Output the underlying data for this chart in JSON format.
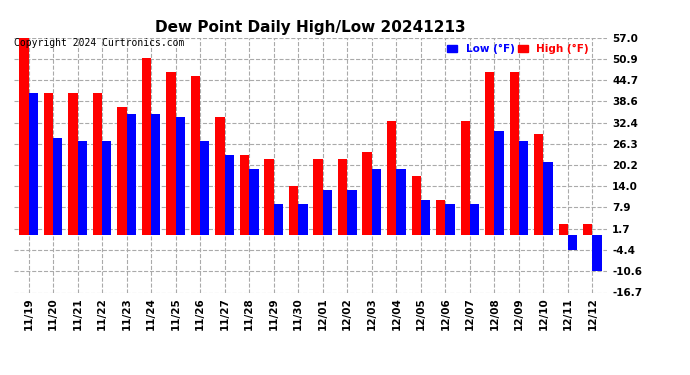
{
  "title": "Dew Point Daily High/Low 20241213",
  "copyright": "Copyright 2024 Curtronics.com",
  "legend_low": "Low (°F)",
  "legend_high": "High (°F)",
  "dates": [
    "11/19",
    "11/20",
    "11/21",
    "11/22",
    "11/23",
    "11/24",
    "11/25",
    "11/26",
    "11/27",
    "11/28",
    "11/29",
    "11/30",
    "12/01",
    "12/02",
    "12/03",
    "12/04",
    "12/05",
    "12/06",
    "12/07",
    "12/08",
    "12/09",
    "12/10",
    "12/11",
    "12/12"
  ],
  "high_values": [
    57.0,
    41.0,
    41.0,
    41.0,
    37.0,
    51.0,
    47.0,
    46.0,
    34.0,
    23.0,
    22.0,
    14.0,
    22.0,
    22.0,
    24.0,
    33.0,
    17.0,
    10.0,
    33.0,
    47.0,
    47.0,
    29.0,
    3.0,
    3.0
  ],
  "low_values": [
    41.0,
    28.0,
    27.0,
    27.0,
    35.0,
    35.0,
    34.0,
    27.0,
    23.0,
    19.0,
    9.0,
    9.0,
    13.0,
    13.0,
    19.0,
    19.0,
    10.0,
    9.0,
    9.0,
    30.0,
    27.0,
    21.0,
    -4.4,
    -10.6
  ],
  "ylim": [
    -16.7,
    57.0
  ],
  "yticks": [
    -16.7,
    -10.6,
    -4.4,
    1.7,
    7.9,
    14.0,
    20.2,
    26.3,
    32.4,
    38.6,
    44.7,
    50.9,
    57.0
  ],
  "bar_width": 0.38,
  "high_color": "#ff0000",
  "low_color": "#0000ff",
  "grid_color": "#aaaaaa",
  "background_color": "#ffffff",
  "title_fontsize": 11,
  "tick_fontsize": 7.5
}
